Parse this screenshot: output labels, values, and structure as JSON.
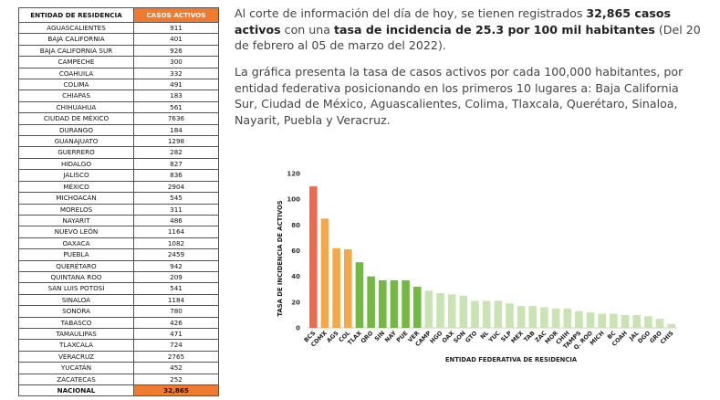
{
  "table": {
    "header": [
      "ENTIDAD DE RESIDENCIA",
      "CASOS ACTIVOS"
    ],
    "rows": [
      [
        "AGUASCALIENTES",
        "911"
      ],
      [
        "BAJA CALIFORNIA",
        "401"
      ],
      [
        "BAJA CALIFORNIA SUR",
        "926"
      ],
      [
        "CAMPECHE",
        "300"
      ],
      [
        "COAHUILA",
        "332"
      ],
      [
        "COLIMA",
        "491"
      ],
      [
        "CHIAPAS",
        "183"
      ],
      [
        "CHIHUAHUA",
        "561"
      ],
      [
        "CIUDAD DE MÉXICO",
        "7636"
      ],
      [
        "DURANGO",
        "184"
      ],
      [
        "GUANAJUATO",
        "1298"
      ],
      [
        "GUERRERO",
        "282"
      ],
      [
        "HIDALGO",
        "827"
      ],
      [
        "JALISCO",
        "836"
      ],
      [
        "MÉXICO",
        "2904"
      ],
      [
        "MICHOACÁN",
        "545"
      ],
      [
        "MORELOS",
        "311"
      ],
      [
        "NAYARIT",
        "486"
      ],
      [
        "NUEVO LEÓN",
        "1164"
      ],
      [
        "OAXACA",
        "1082"
      ],
      [
        "PUEBLA",
        "2459"
      ],
      [
        "QUERÉTARO",
        "942"
      ],
      [
        "QUINTANA ROO",
        "209"
      ],
      [
        "SAN LUIS POTOSÍ",
        "541"
      ],
      [
        "SINALOA",
        "1184"
      ],
      [
        "SONORA",
        "780"
      ],
      [
        "TABASCO",
        "426"
      ],
      [
        "TAMAULIPAS",
        "471"
      ],
      [
        "TLAXCALA",
        "724"
      ],
      [
        "VERACRUZ",
        "2765"
      ],
      [
        "YUCATÁN",
        "452"
      ],
      [
        "ZACATECAS",
        "252"
      ]
    ],
    "total": [
      "NACIONAL",
      "32,865"
    ]
  },
  "text": {
    "p1_a": "Al corte de información del día de hoy, se tienen registrados ",
    "p1_b": "32,865 casos activos",
    "p1_c": " con una ",
    "p1_d": "tasa de incidencia de 25.3 por 100 mil habitantes",
    "p1_e": " (Del 20 de febrero al 05 de marzo del 2022).",
    "p2": "La gráfica presenta la tasa de casos activos por cada 100,000 habitantes, por entidad federativa posicionando en los primeros 10 lugares a: Baja California Sur, Ciudad de México, Aguascalientes, Colima, Tlaxcala, Querétaro, Sinaloa, Nayarit, Puebla y Veracruz."
  },
  "chart_data": {
    "type": "bar",
    "title": "",
    "xlabel": "ENTIDAD FEDERATIVA DE RESIDENCIA",
    "ylabel": "TASA DE INCIDENCIA DE ACTIVOS",
    "ylim": [
      0,
      120
    ],
    "yticks": [
      0,
      20,
      40,
      60,
      80,
      100,
      120
    ],
    "grid": false,
    "categories": [
      "BCS",
      "CDMX",
      "AGS",
      "COL",
      "TLAX",
      "QRO",
      "SIN",
      "NAY",
      "PUE",
      "VER",
      "CAMP",
      "HGO",
      "OAX",
      "SON",
      "GTO",
      "NL",
      "YUC",
      "SLP",
      "MEX",
      "TAB",
      "ZAC",
      "MOR",
      "CHIH",
      "TAMPS",
      "Q. ROO",
      "MICH",
      "BC",
      "COAH",
      "JAL",
      "DGO",
      "GRO",
      "CHIS"
    ],
    "values": [
      110,
      85,
      62,
      61,
      51,
      40,
      37,
      37,
      37,
      32,
      29,
      27,
      26,
      25,
      21,
      21,
      21,
      19,
      17,
      17,
      16,
      15,
      15,
      13,
      12,
      11,
      11,
      10,
      10,
      9,
      7,
      3
    ],
    "colors": [
      "#ee6a4d",
      "#f4a84a",
      "#f4a84a",
      "#f4a84a",
      "#72b843",
      "#72b843",
      "#72b843",
      "#72b843",
      "#72b843",
      "#72b843",
      "#c9e3b2",
      "#c9e3b2",
      "#c9e3b2",
      "#c9e3b2",
      "#c9e3b2",
      "#c9e3b2",
      "#c9e3b2",
      "#c9e3b2",
      "#c9e3b2",
      "#c9e3b2",
      "#c9e3b2",
      "#c9e3b2",
      "#c9e3b2",
      "#c9e3b2",
      "#c9e3b2",
      "#c9e3b2",
      "#c9e3b2",
      "#c9e3b2",
      "#c9e3b2",
      "#c9e3b2",
      "#c9e3b2",
      "#c9e3b2"
    ]
  }
}
